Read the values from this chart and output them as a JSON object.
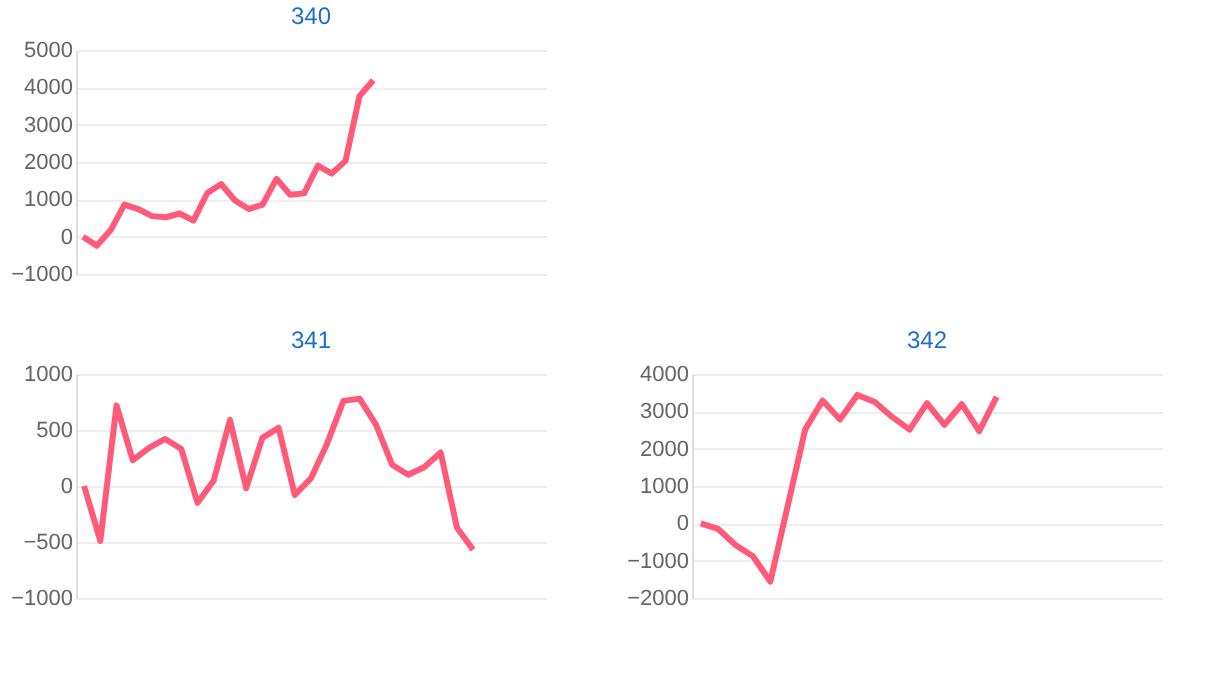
{
  "chart_data": [
    {
      "type": "line",
      "title": "340",
      "categories": [
        null,
        null,
        null,
        null,
        null,
        null,
        null,
        null,
        null,
        null,
        null,
        null,
        null,
        null,
        null,
        null,
        null,
        null,
        null,
        null,
        null,
        null,
        null,
        null,
        null,
        null,
        null,
        null,
        null,
        null,
        null,
        null,
        null,
        null
      ],
      "series": [
        {
          "color": "#ff5a78",
          "values": [
            0,
            -240,
            170,
            860,
            740,
            550,
            520,
            620,
            430,
            1170,
            1410,
            970,
            740,
            860,
            1550,
            1120,
            1160,
            1900,
            1690,
            2030,
            3760,
            4190,
            null,
            null,
            null,
            null,
            null,
            null,
            null,
            null,
            null,
            null,
            null,
            null
          ]
        }
      ],
      "ylim": [
        -1000,
        5000
      ],
      "yticks": [
        -1000,
        0,
        1000,
        2000,
        3000,
        4000,
        5000
      ],
      "grid": "y",
      "tick_labels": "y",
      "marker": "none",
      "line_style": "solid"
    },
    {
      "type": "line",
      "title": "341",
      "categories": [
        null,
        null,
        null,
        null,
        null,
        null,
        null,
        null,
        null,
        null,
        null,
        null,
        null,
        null,
        null,
        null,
        null,
        null,
        null,
        null,
        null,
        null,
        null,
        null,
        null,
        null,
        null,
        null,
        null
      ],
      "series": [
        {
          "color": "#ff5a78",
          "values": [
            0,
            -490,
            720,
            230,
            340,
            420,
            330,
            -150,
            50,
            590,
            -20,
            430,
            520,
            -80,
            70,
            380,
            760,
            780,
            550,
            190,
            100,
            170,
            300,
            -370,
            -570,
            null,
            null,
            null,
            null
          ]
        }
      ],
      "ylim": [
        -1000,
        1000
      ],
      "yticks": [
        -1000,
        -500,
        0,
        500,
        1000
      ],
      "grid": "y",
      "tick_labels": "y",
      "marker": "none",
      "line_style": "solid"
    },
    {
      "type": "line",
      "title": "342",
      "categories": [
        null,
        null,
        null,
        null,
        null,
        null,
        null,
        null,
        null,
        null,
        null,
        null,
        null,
        null,
        null,
        null,
        null,
        null,
        null,
        null,
        null,
        null,
        null,
        null,
        null,
        null,
        null
      ],
      "series": [
        {
          "color": "#ff5a78",
          "values": [
            0,
            -150,
            -580,
            -880,
            -1560,
            470,
            2510,
            3290,
            2780,
            3440,
            3250,
            2850,
            2510,
            3220,
            2640,
            3190,
            2470,
            3390,
            null,
            null,
            null,
            null,
            null,
            null,
            null,
            null,
            null
          ]
        }
      ],
      "ylim": [
        -2000,
        4000
      ],
      "yticks": [
        -2000,
        -1000,
        0,
        1000,
        2000,
        3000,
        4000
      ],
      "grid": "y",
      "tick_labels": "y",
      "marker": "none",
      "line_style": "solid"
    }
  ]
}
